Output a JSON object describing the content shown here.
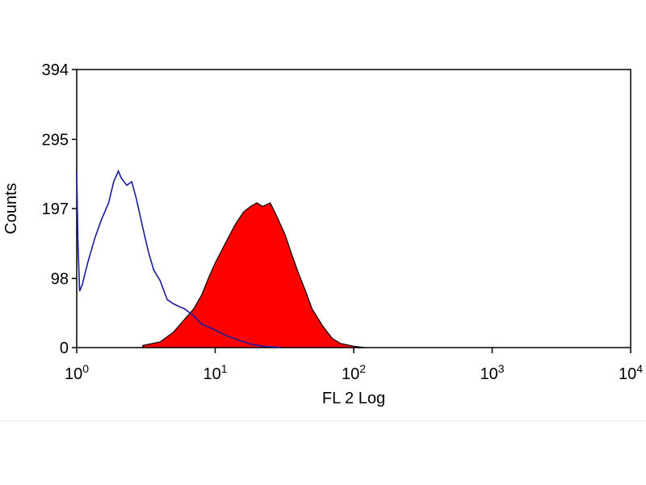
{
  "chart_data": {
    "type": "area",
    "xlabel": "FL 2 Log",
    "ylabel": "Counts",
    "x_scale": "log",
    "xlim": [
      1,
      10000
    ],
    "ylim": [
      0,
      394
    ],
    "x_ticks": [
      {
        "value": 1,
        "base": "10",
        "exp": "0"
      },
      {
        "value": 10,
        "base": "10",
        "exp": "1"
      },
      {
        "value": 100,
        "base": "10",
        "exp": "2"
      },
      {
        "value": 1000,
        "base": "10",
        "exp": "3"
      },
      {
        "value": 10000,
        "base": "10",
        "exp": "4"
      }
    ],
    "y_ticks": [
      0,
      98,
      197,
      295,
      394
    ],
    "grid": false,
    "series": [
      {
        "style": "filled",
        "color": "#ff0000",
        "outline": "#000000",
        "x": [
          3,
          4,
          5,
          6,
          7,
          8,
          9,
          10,
          12,
          14,
          16,
          18,
          20,
          22,
          25,
          28,
          32,
          36,
          40,
          45,
          50,
          60,
          70,
          80,
          100,
          120
        ],
        "y": [
          3,
          8,
          22,
          40,
          55,
          75,
          100,
          120,
          150,
          175,
          192,
          200,
          205,
          200,
          205,
          185,
          160,
          130,
          105,
          80,
          55,
          30,
          13,
          6,
          2,
          0
        ]
      },
      {
        "style": "line",
        "color": "#1a1a9a",
        "x": [
          1.0,
          1.02,
          1.05,
          1.1,
          1.2,
          1.35,
          1.5,
          1.7,
          1.85,
          2.0,
          2.1,
          2.3,
          2.5,
          2.7,
          3.0,
          3.3,
          3.6,
          4.0,
          4.5,
          5.0,
          5.5,
          6.0,
          7.0,
          8.0,
          10,
          12,
          15,
          18,
          22,
          26,
          30
        ],
        "y": [
          250,
          150,
          80,
          90,
          120,
          155,
          180,
          205,
          235,
          250,
          240,
          230,
          235,
          210,
          170,
          135,
          110,
          95,
          68,
          62,
          58,
          55,
          45,
          33,
          25,
          17,
          10,
          5,
          2,
          1,
          0
        ]
      }
    ]
  }
}
